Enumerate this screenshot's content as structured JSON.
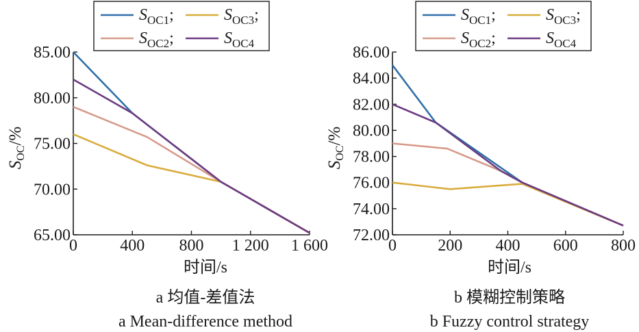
{
  "colors": {
    "S_OC1": "#2f6fa8",
    "S_OC2": "#d69a8a",
    "S_OC3": "#d9ac3c",
    "S_OC4": "#6b3a82",
    "axis": "#1a1a1a"
  },
  "chart_data": [
    {
      "type": "line",
      "xlabel": "时间/s",
      "ylabel": "S",
      "ylabel_sub": "OC",
      "ylabel_suffix": "/%",
      "xlim": [
        0,
        1600
      ],
      "ylim": [
        65,
        85
      ],
      "xticks": [
        0,
        400,
        800,
        1200,
        1600
      ],
      "xtick_labels": [
        "0",
        "400",
        "800",
        "1 200",
        "1 600"
      ],
      "yticks": [
        65,
        70,
        75,
        80,
        85
      ],
      "ytick_labels": [
        "65.00",
        "70.00",
        "75.00",
        "80.00",
        "85.00"
      ],
      "caption_cn": "a  均值-差值法",
      "caption_en": "a  Mean-difference method",
      "legend": [
        {
          "main": "S",
          "sub": "OC1",
          "sep": ";",
          "color_key": "S_OC1"
        },
        {
          "main": "S",
          "sub": "OC3",
          "sep": ";",
          "color_key": "S_OC3"
        },
        {
          "main": "S",
          "sub": "OC2",
          "sep": ";",
          "color_key": "S_OC2"
        },
        {
          "main": "S",
          "sub": "OC4",
          "sep": "",
          "color_key": "S_OC4"
        }
      ],
      "series": [
        {
          "name": "S_OC1",
          "color_key": "S_OC1",
          "x": [
            0,
            400,
            1000,
            1600
          ],
          "y": [
            85.0,
            78.3,
            70.8,
            65.2
          ]
        },
        {
          "name": "S_OC2",
          "color_key": "S_OC2",
          "x": [
            0,
            500,
            1000,
            1600
          ],
          "y": [
            79.0,
            75.7,
            70.8,
            65.2
          ]
        },
        {
          "name": "S_OC3",
          "color_key": "S_OC3",
          "x": [
            0,
            500,
            1000,
            1600
          ],
          "y": [
            76.0,
            72.6,
            70.8,
            65.2
          ]
        },
        {
          "name": "S_OC4",
          "color_key": "S_OC4",
          "x": [
            0,
            400,
            1000,
            1600
          ],
          "y": [
            82.0,
            78.3,
            70.8,
            65.2
          ]
        }
      ]
    },
    {
      "type": "line",
      "xlabel": "时间/s",
      "ylabel": "S",
      "ylabel_sub": "OC",
      "ylabel_suffix": "/%",
      "xlim": [
        0,
        800
      ],
      "ylim": [
        72,
        86
      ],
      "xticks": [
        0,
        200,
        400,
        600,
        800
      ],
      "xtick_labels": [
        "0",
        "200",
        "400",
        "600",
        "800"
      ],
      "yticks": [
        72,
        74,
        76,
        78,
        80,
        82,
        84,
        86
      ],
      "ytick_labels": [
        "72.00",
        "74.00",
        "76.00",
        "78.00",
        "80.00",
        "82.00",
        "84.00",
        "86.00"
      ],
      "caption_cn": "b  模糊控制策略",
      "caption_en": "b  Fuzzy control strategy",
      "legend": [
        {
          "main": "S",
          "sub": "OC1",
          "sep": ";",
          "color_key": "S_OC1"
        },
        {
          "main": "S",
          "sub": "OC3",
          "sep": ";",
          "color_key": "S_OC3"
        },
        {
          "main": "S",
          "sub": "OC2",
          "sep": ";",
          "color_key": "S_OC2"
        },
        {
          "main": "S",
          "sub": "OC4",
          "sep": "",
          "color_key": "S_OC4"
        }
      ],
      "series": [
        {
          "name": "S_OC1",
          "color_key": "S_OC1",
          "x": [
            0,
            150,
            450,
            800
          ],
          "y": [
            85.0,
            80.6,
            76.0,
            72.7
          ]
        },
        {
          "name": "S_OC2",
          "color_key": "S_OC2",
          "x": [
            0,
            190,
            375,
            450,
            800
          ],
          "y": [
            79.0,
            78.6,
            76.9,
            76.0,
            72.7
          ]
        },
        {
          "name": "S_OC3",
          "color_key": "S_OC3",
          "x": [
            0,
            200,
            450,
            800
          ],
          "y": [
            76.0,
            75.5,
            75.9,
            72.7
          ]
        },
        {
          "name": "S_OC4",
          "color_key": "S_OC4",
          "x": [
            0,
            150,
            375,
            450,
            800
          ],
          "y": [
            82.0,
            80.6,
            76.9,
            76.0,
            72.7
          ]
        }
      ]
    }
  ]
}
